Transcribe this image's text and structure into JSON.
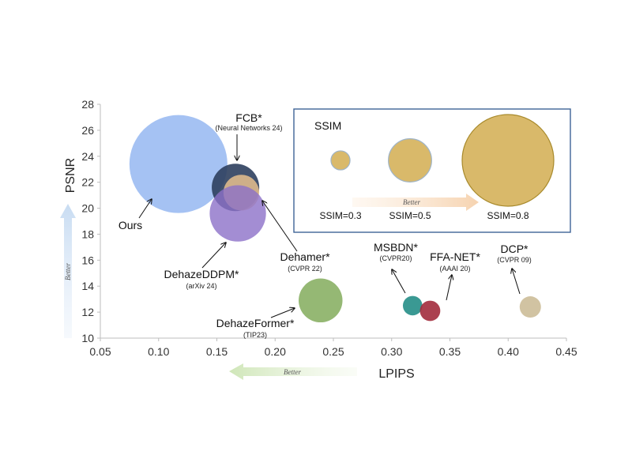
{
  "chart_data": {
    "type": "scatter",
    "xlabel": "LPIPS",
    "ylabel": "PSNR",
    "xlim": [
      0.05,
      0.45
    ],
    "ylim": [
      10,
      28
    ],
    "x_ticks": [
      "0.05",
      "0.10",
      "0.15",
      "0.20",
      "0.25",
      "0.30",
      "0.35",
      "0.40",
      "0.45"
    ],
    "y_ticks": [
      "10",
      "12",
      "14",
      "16",
      "18",
      "20",
      "22",
      "24",
      "26",
      "28"
    ],
    "grid": false,
    "better_labels": {
      "x": "Better",
      "y": "Better",
      "legend": "Better"
    },
    "points": [
      {
        "name": "Ours",
        "venue": "",
        "lpips": 0.117,
        "psnr": 23.4,
        "ssim": 0.94,
        "color": "#7fa8ee",
        "opacity": 0.7
      },
      {
        "name": "FCB*",
        "venue": "(Neural Networks 24)",
        "lpips": 0.166,
        "psnr": 21.6,
        "ssim": 0.58,
        "color": "#2e3f5e",
        "opacity": 0.9
      },
      {
        "name": "Dehamer*",
        "venue": "(CVPR 22)",
        "lpips": 0.171,
        "psnr": 21.2,
        "ssim": 0.48,
        "color": "#e6c08e",
        "opacity": 0.85
      },
      {
        "name": "DehazeDDPM*",
        "venue": "(arXiv 24)",
        "lpips": 0.168,
        "psnr": 19.6,
        "ssim": 0.65,
        "color": "#8c70c8",
        "opacity": 0.8
      },
      {
        "name": "DehazeFormer*",
        "venue": "(TIP23)",
        "lpips": 0.239,
        "psnr": 12.9,
        "ssim": 0.55,
        "color": "#82ab5c",
        "opacity": 0.85
      },
      {
        "name": "MSBDN*",
        "venue": "(CVPR20)",
        "lpips": 0.318,
        "psnr": 12.5,
        "ssim": 0.32,
        "color": "#2f948d",
        "opacity": 0.95
      },
      {
        "name": "FFA-NET*",
        "venue": "(AAAI 20)",
        "lpips": 0.333,
        "psnr": 12.1,
        "ssim": 0.33,
        "color": "#a22b3c",
        "opacity": 0.9
      },
      {
        "name": "DCP*",
        "venue": "(CVPR 09)",
        "lpips": 0.419,
        "psnr": 12.4,
        "ssim": 0.34,
        "color": "#c9b892",
        "opacity": 0.85
      }
    ],
    "size_legend": {
      "title": "SSIM",
      "color": "#d9b96a",
      "entries": [
        {
          "label": "SSIM=0.3",
          "ssim": 0.3
        },
        {
          "label": "SSIM=0.5",
          "ssim": 0.5
        },
        {
          "label": "SSIM=0.8",
          "ssim": 0.8
        }
      ]
    }
  }
}
